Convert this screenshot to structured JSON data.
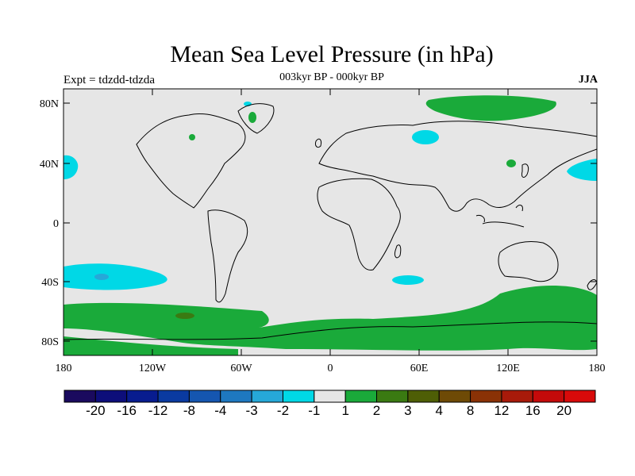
{
  "title": "Mean Sea Level Pressure (in hPa)",
  "subtitle": "003kyr BP - 000kyr BP",
  "left_label": "Expt = tdzdd-tdzda",
  "right_label": "JJA",
  "map": {
    "background_color": "#e6e6e6",
    "lat_ticks": [
      "80N",
      "40N",
      "0",
      "40S",
      "80S"
    ],
    "lon_ticks": [
      "180",
      "120W",
      "60W",
      "0",
      "60E",
      "120E",
      "180"
    ]
  },
  "colorbar": {
    "colors": [
      "#1a0a5e",
      "#0d0e7a",
      "#081c8f",
      "#0a3aa0",
      "#1556b0",
      "#1e78c0",
      "#26a8d8",
      "#00d8e6",
      "#e6e6e6",
      "#1aaa3a",
      "#3a7a12",
      "#4e5e06",
      "#6e4a06",
      "#8a3206",
      "#a81a0a",
      "#c40a0a",
      "#d80a0a"
    ],
    "labels": [
      "-20",
      "-16",
      "-12",
      "-8",
      "-4",
      "-3",
      "-2",
      "-1",
      "1",
      "2",
      "3",
      "4",
      "8",
      "12",
      "16",
      "20"
    ]
  }
}
